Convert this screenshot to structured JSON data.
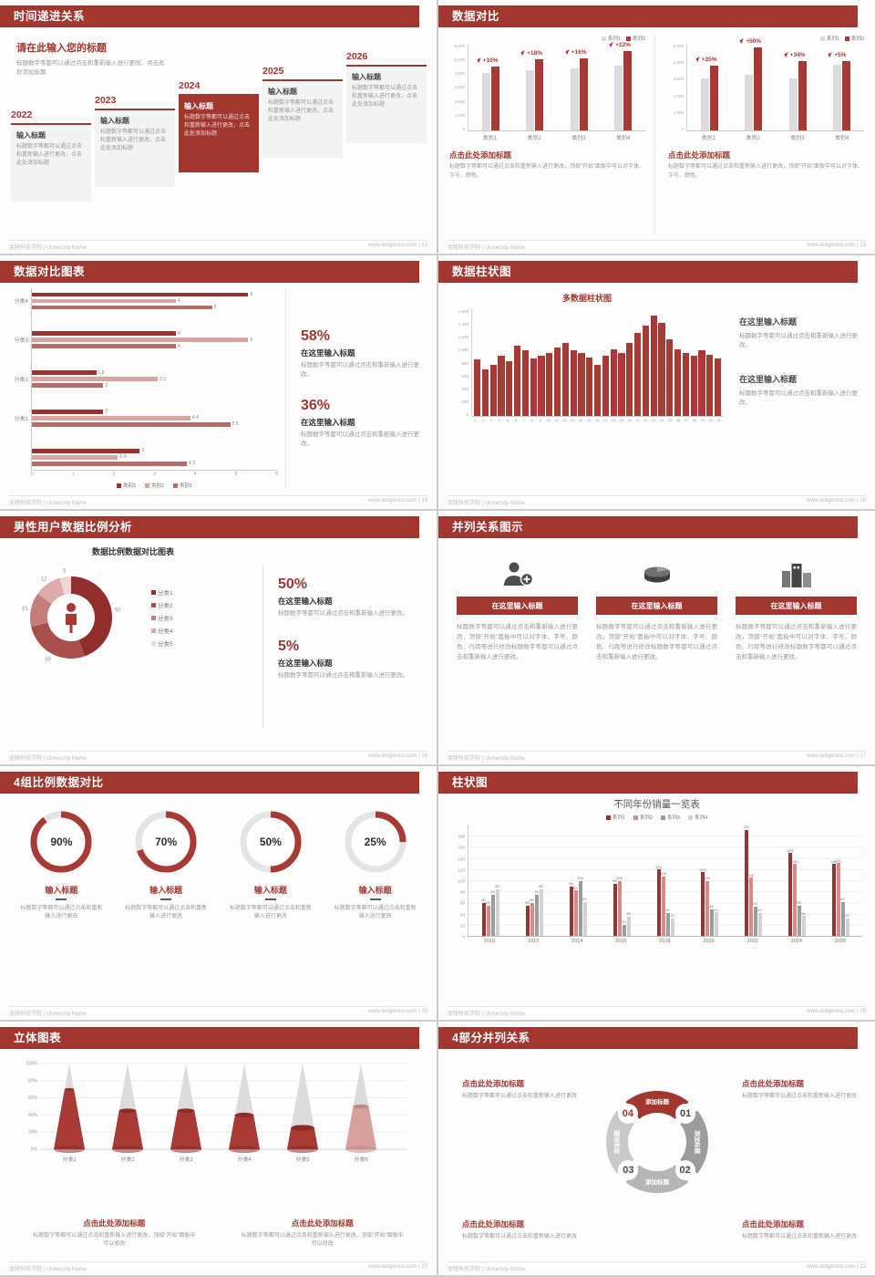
{
  "accent": "#a23730",
  "footer": {
    "school": "金陵科技学院 | University Name",
    "site": "www.aotgenius.com"
  },
  "chart_data": [
    {
      "id": "compare-left",
      "type": "bar",
      "categories": [
        "类别1",
        "类别2",
        "类别3",
        "类别4"
      ],
      "series": [
        {
          "name": "系列1",
          "values": [
            4000,
            4200,
            4300,
            4500
          ]
        },
        {
          "name": "系列2",
          "values": [
            4400,
            4950,
            5000,
            5500
          ]
        }
      ],
      "growth_labels": [
        "+10%",
        "+18%",
        "+16%",
        "+22%"
      ],
      "ylim": [
        0,
        6000
      ],
      "yticks": [
        "6,000",
        "5,000",
        "4,000",
        "3,000",
        "2,000",
        "1,000",
        "0"
      ]
    },
    {
      "id": "compare-right",
      "type": "bar",
      "categories": [
        "类别1",
        "类别2",
        "类别3",
        "类别4"
      ],
      "series": [
        {
          "name": "系列1",
          "values": [
            3000,
            3200,
            3000,
            3800
          ]
        },
        {
          "name": "系列2",
          "values": [
            3750,
            4800,
            4000,
            4000
          ]
        }
      ],
      "growth_labels": [
        "+25%",
        "+50%",
        "+34%",
        "+5%"
      ],
      "ylim": [
        0,
        5000
      ],
      "yticks": [
        "5,000",
        "4,000",
        "3,000",
        "2,000",
        "1,000",
        "0"
      ]
    },
    {
      "id": "horizontal-compare",
      "type": "bar",
      "orientation": "horizontal",
      "groups": [
        {
          "label": "分类4",
          "values": [
            6,
            4,
            5
          ]
        },
        {
          "label": "分类3",
          "values": [
            4,
            6,
            4
          ]
        },
        {
          "label": "分类2",
          "values": [
            1.8,
            3.5,
            2
          ]
        },
        {
          "label": "分类1",
          "values": [
            2,
            4.4,
            5.5
          ]
        },
        {
          "label": "",
          "values": [
            3,
            2.4,
            4.3
          ]
        }
      ],
      "legend": [
        "类别3",
        "类别2",
        "类别1"
      ],
      "xlim": [
        0,
        6
      ],
      "xticks": [
        "0",
        "1",
        "2",
        "3",
        "4",
        "5",
        "6"
      ]
    },
    {
      "id": "daily-columns",
      "type": "bar",
      "title": "多数据柱状图",
      "x": [
        "1",
        "2",
        "3",
        "4",
        "5",
        "6",
        "7",
        "8",
        "9",
        "10",
        "11",
        "12",
        "13",
        "14",
        "15",
        "16",
        "17",
        "18",
        "19",
        "20",
        "21",
        "22",
        "23",
        "24",
        "25",
        "26",
        "27",
        "28",
        "29",
        "30",
        "31"
      ],
      "values": [
        850,
        700,
        760,
        900,
        820,
        1050,
        980,
        860,
        900,
        950,
        1020,
        1100,
        980,
        940,
        880,
        760,
        900,
        1000,
        950,
        1100,
        1250,
        1350,
        1500,
        1400,
        1150,
        1000,
        950,
        900,
        980,
        920,
        860
      ],
      "ylim": [
        0,
        1600
      ],
      "yticks": [
        "1,600",
        "1,400",
        "1,200",
        "1,000",
        "800",
        "600",
        "400",
        "200",
        "0"
      ]
    },
    {
      "id": "male-ratio-donut",
      "type": "pie",
      "title": "数据比例数据对比图表",
      "labels": [
        "分类1",
        "分类2",
        "分类3",
        "分类4",
        "分类5"
      ],
      "values": [
        50,
        30,
        15,
        12,
        5
      ],
      "colors": [
        "#8f2e2c",
        "#a94f4c",
        "#c47d7a",
        "#dcabaa",
        "#efd7d6"
      ]
    },
    {
      "id": "progress-rings",
      "type": "pie",
      "values": [
        90,
        70,
        50,
        25
      ],
      "labels": [
        "90%",
        "70%",
        "50%",
        "25%"
      ]
    },
    {
      "id": "yearly-sales",
      "type": "bar",
      "title": "不同年份销量一览表",
      "categories": [
        "2010",
        "2012",
        "2014",
        "2016",
        "2018",
        "2020",
        "2022",
        "2024",
        "2026"
      ],
      "series": [
        {
          "name": "系列1",
          "values": [
            60,
            55,
            90,
            95,
            120,
            115,
            192,
            150,
            130
          ]
        },
        {
          "name": "系列2",
          "values": [
            55,
            60,
            82,
            100,
            108,
            100,
            105,
            130,
            132
          ]
        },
        {
          "name": "系列3",
          "values": [
            75,
            75,
            100,
            20,
            42,
            48,
            53,
            55,
            62
          ]
        },
        {
          "name": "系列4",
          "values": [
            85,
            85,
            62,
            35,
            32,
            43,
            42,
            36,
            32
          ]
        }
      ],
      "ylim": [
        0,
        200
      ],
      "yticks": [
        "180",
        "160",
        "140",
        "120",
        "100",
        "80",
        "60",
        "40",
        "20",
        "0"
      ]
    },
    {
      "id": "cone-chart",
      "type": "bar",
      "categories": [
        "分类1",
        "分类2",
        "分类3",
        "分类4",
        "分类5",
        "分类6"
      ],
      "values": [
        70,
        45,
        45,
        40,
        25,
        50
      ],
      "ylim": [
        0,
        100
      ],
      "yticks": [
        "100%",
        "80%",
        "60%",
        "40%",
        "20%",
        "0%"
      ]
    }
  ],
  "s1": {
    "header": "时间递进关系",
    "page": "12",
    "intro_title": "请在此输入您的标题",
    "intro_text": "标题数字等都可以通过点击和重新输入进行更改，点击此处添加标题",
    "years": [
      "2022",
      "2023",
      "2024",
      "2025",
      "2026"
    ],
    "item_title": "输入标题",
    "item_text": "标题数字等都可以通过点击和重新输入进行更改，点击此处添加标题"
  },
  "s2": {
    "header": "数据对比",
    "page": "13",
    "caption": "点击此处添加标题",
    "caption_text": "标题数字等都可以通过点击和重新输入进行更改，顶部“开始”面板中可以对字体、字号、颜色。"
  },
  "s3": {
    "header": "数据对比图表",
    "page": "14",
    "stats": [
      {
        "pct": "58%",
        "title": "在这里输入标题",
        "text": "标题数字等都可以通过点击和重新输入进行更改。"
      },
      {
        "pct": "36%",
        "title": "在这里输入标题",
        "text": "标题数字等都可以通过点击和重新输入进行更改。"
      }
    ]
  },
  "s4": {
    "header": "数据柱状图",
    "page": "15",
    "blocks": [
      {
        "title": "在这里输入标题",
        "text": "标题数字等都可以通过点击和重新输入进行更改。"
      },
      {
        "title": "在这里输入标题",
        "text": "标题数字等都可以通过点击和重新输入进行更改。"
      }
    ]
  },
  "s5": {
    "header": "男性用户数据比例分析",
    "page": "16",
    "stats": [
      {
        "pct": "50%",
        "title": "在这里输入标题",
        "text": "标题数字等都可以通过点击和重新输入进行更改。"
      },
      {
        "pct": "5%",
        "title": "在这里输入标题",
        "text": "标题数字等都可以通过点击和重新输入进行更改。"
      }
    ]
  },
  "s6": {
    "header": "并列关系图示",
    "page": "17",
    "col_title": "在这里输入标题",
    "col_text": "标题数字等都可以通过点击和重新输入进行更改，顶部“开始”面板中可以对字体、字号、颜色、行距等进行修改标题数字等都可以通过点击和重新输入进行更改。",
    "icons": [
      "person-add-icon",
      "pie-3d-icon",
      "building-icon"
    ]
  },
  "s7": {
    "header": "4组比例数据对比",
    "page": "18",
    "item_title": "输入标题",
    "item_texts": [
      "标题数字等都可以通过点击和重新输入进行更改",
      "标题数字等都可以通过点击和重新输入进行更改",
      "标题数字等都可以通过点击和重新输入进行更改",
      "标题数字等都可以通过点击和重新输入进行更改"
    ]
  },
  "s8": {
    "header": "柱状图",
    "page": "19"
  },
  "s9": {
    "header": "立体图表",
    "page": "20",
    "blocks": [
      {
        "title": "点击此处添加标题",
        "text": "标题数字等都可以通过点击和重新输入进行更改，顶部“开始”面板中可以修改"
      },
      {
        "title": "点击此处添加标题",
        "text": "标题数字等都可以通过点击和重新输入进行更改，顶部“开始”面板中可以修改"
      }
    ]
  },
  "s10": {
    "header": "4部分并列关系",
    "page": "21",
    "segment_label": "添加标题",
    "numbers": [
      "01",
      "02",
      "03",
      "04"
    ],
    "blocks": [
      {
        "title": "点击此处添加标题",
        "text": "标题数字等都可以通过点击和重新输入进行更改"
      },
      {
        "title": "点击此处添加标题",
        "text": "标题数字等都可以通过点击和重新输入进行更改"
      },
      {
        "title": "点击此处添加标题",
        "text": "标题数字等都可以通过点击和重新输入进行更改"
      },
      {
        "title": "点击此处添加标题",
        "text": "标题数字等都可以通过点击和重新输入进行更改"
      }
    ]
  }
}
